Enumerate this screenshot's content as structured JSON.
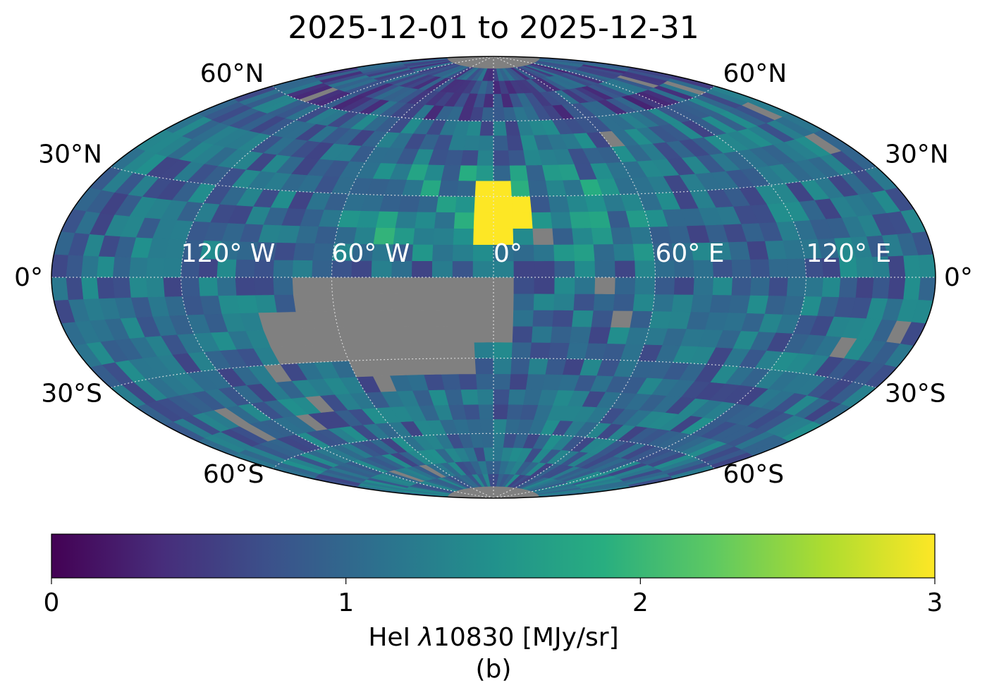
{
  "chart_data": {
    "type": "heatmap",
    "projection": "hammer",
    "title": "2025-12-01 to 2025-12-31",
    "colorbar": {
      "label": "HeI λ10830 [MJy/sr]",
      "label_prefix": "HeI ",
      "label_symbol": "λ",
      "label_suffix": "10830 [MJy/sr]",
      "colormap": "viridis",
      "vmin": 0,
      "vmax": 3,
      "ticks": [
        "0",
        "1",
        "2",
        "3"
      ]
    },
    "panel_label": "(b)",
    "grid": true,
    "missing_color": "#808080",
    "lat_labels": [
      {
        "lat": 60,
        "text": "60°N"
      },
      {
        "lat": 30,
        "text": "30°N"
      },
      {
        "lat": 0,
        "text": "0°"
      },
      {
        "lat": -30,
        "text": "30°S"
      },
      {
        "lat": -60,
        "text": "60°S"
      }
    ],
    "lon_labels": [
      {
        "lon": -120,
        "text": "120° W"
      },
      {
        "lon": -60,
        "text": "60° W"
      },
      {
        "lon": 0,
        "text": "0°"
      },
      {
        "lon": 60,
        "text": "60° E"
      },
      {
        "lon": 120,
        "text": "120° E"
      }
    ],
    "grid_resolution_deg": [
      7.5,
      6
    ],
    "value_description": {
      "typical_range": [
        0.6,
        1.5
      ],
      "high_region_lon": [
        -60,
        60
      ],
      "high_region_lat": [
        5,
        45
      ],
      "peak_values_near_lon_lat": [
        [
          0,
          18
        ],
        [
          5,
          24
        ],
        [
          3,
          30
        ]
      ],
      "peak_value": 3.0
    },
    "missing_region": {
      "lon_range": [
        -90,
        10
      ],
      "lat_range": [
        -36,
        0
      ]
    },
    "missing_polar_caps_lat": 84
  }
}
